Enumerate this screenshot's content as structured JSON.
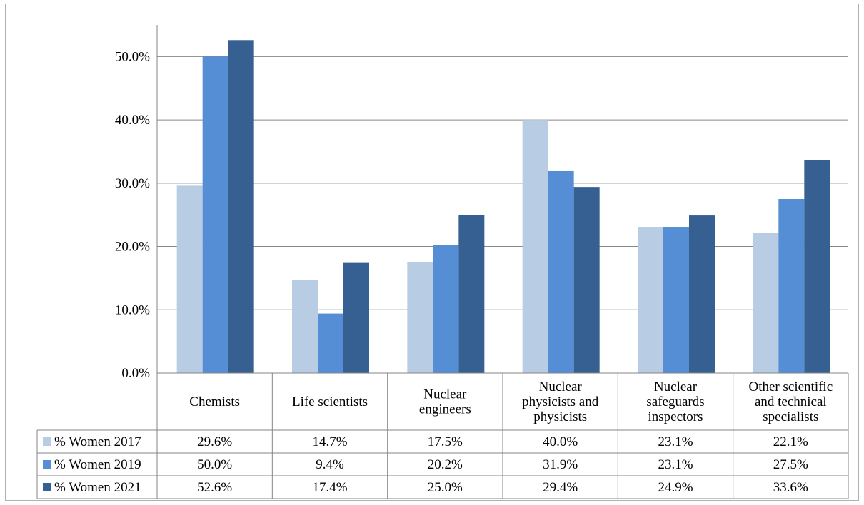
{
  "chart_data": {
    "type": "bar",
    "categories": [
      [
        "Chemists"
      ],
      [
        "Life scientists"
      ],
      [
        "Nuclear",
        "engineers"
      ],
      [
        "Nuclear",
        "physicists and",
        "physicists"
      ],
      [
        "Nuclear",
        "safeguards",
        "inspectors"
      ],
      [
        "Other scientific",
        "and technical",
        "specialists"
      ]
    ],
    "series": [
      {
        "name": "% Women 2017",
        "color": "#b8cce4",
        "values": [
          29.6,
          14.7,
          17.5,
          40.0,
          23.1,
          22.1
        ],
        "labels": [
          "29.6%",
          "14.7%",
          "17.5%",
          "40.0%",
          "23.1%",
          "22.1%"
        ]
      },
      {
        "name": "% Women 2019",
        "color": "#558ed5",
        "values": [
          50.0,
          9.4,
          20.2,
          31.9,
          23.1,
          27.5
        ],
        "labels": [
          "50.0%",
          "9.4%",
          "20.2%",
          "31.9%",
          "23.1%",
          "27.5%"
        ]
      },
      {
        "name": "% Women 2021",
        "color": "#366092",
        "values": [
          52.6,
          17.4,
          25.0,
          29.4,
          24.9,
          33.6
        ],
        "labels": [
          "52.6%",
          "17.4%",
          "25.0%",
          "29.4%",
          "24.9%",
          "33.6%"
        ]
      }
    ],
    "yticks": [
      0,
      10,
      20,
      30,
      40,
      50
    ],
    "ytick_labels": [
      "0.0%",
      "10.0%",
      "20.0%",
      "30.0%",
      "40.0%",
      "50.0%"
    ],
    "ylim": [
      0,
      55
    ],
    "grid": true,
    "legend": "data-table",
    "title": "",
    "xlabel": "",
    "ylabel": ""
  }
}
